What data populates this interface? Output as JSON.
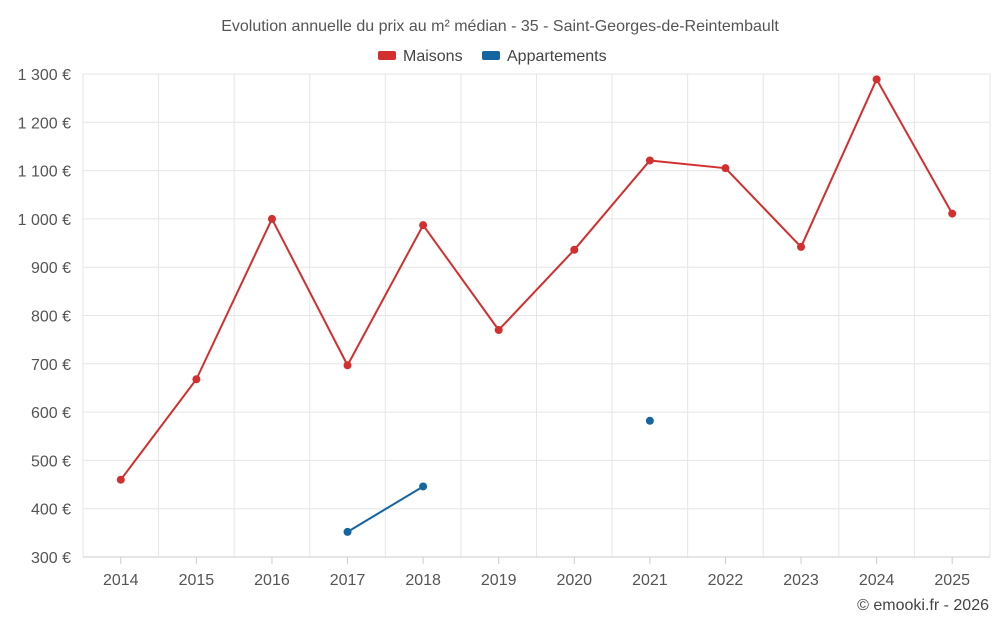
{
  "chart_data": {
    "type": "line",
    "title": "Evolution annuelle du prix au m² médian - 35 - Saint-Georges-de-Reintembault",
    "categories": [
      "2014",
      "2015",
      "2016",
      "2017",
      "2018",
      "2019",
      "2020",
      "2021",
      "2022",
      "2023",
      "2024",
      "2025"
    ],
    "series": [
      {
        "name": "Maisons",
        "color": "#d32f2f",
        "values": [
          460,
          668,
          1000,
          697,
          987,
          770,
          936,
          1121,
          1105,
          942,
          1289,
          1011
        ]
      },
      {
        "name": "Appartements",
        "color": "#1565a0",
        "values": [
          null,
          null,
          null,
          352,
          446,
          null,
          null,
          582,
          null,
          null,
          null,
          null
        ]
      }
    ],
    "ylim": [
      300,
      1300
    ],
    "yticks": [
      300,
      400,
      500,
      600,
      700,
      800,
      900,
      1000,
      1100,
      1200,
      1300
    ],
    "ytick_labels": [
      "300 €",
      "400 €",
      "500 €",
      "600 €",
      "700 €",
      "800 €",
      "900 €",
      "1 000 €",
      "1 100 €",
      "1 200 €",
      "1 300 €"
    ],
    "legend_position": "top-center",
    "grid": true,
    "xlabel": "",
    "ylabel": ""
  },
  "credit": "© emooki.fr - 2026"
}
